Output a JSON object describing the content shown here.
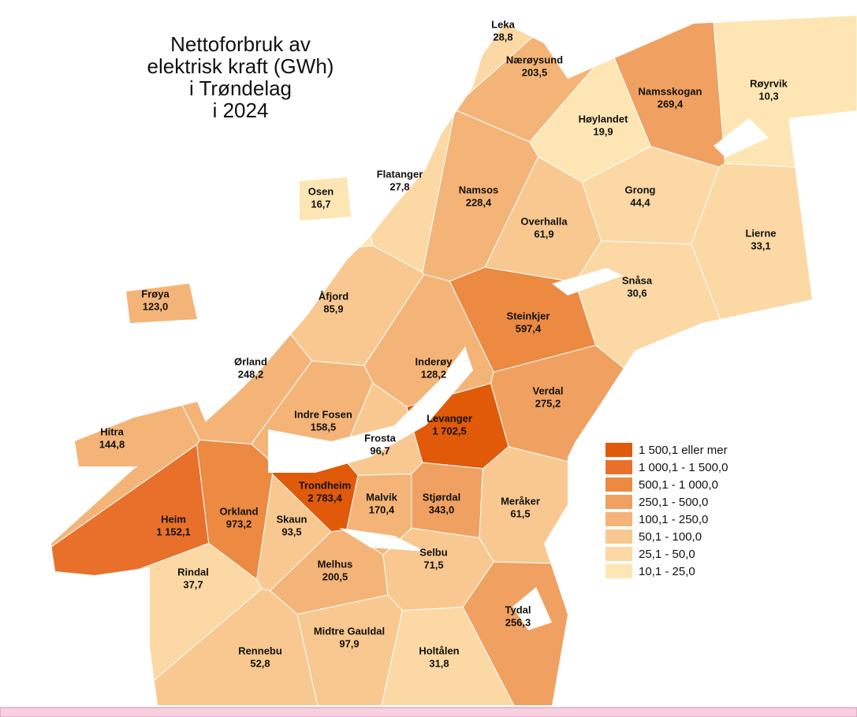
{
  "title": [
    "Nettoforbruk av",
    "elektrisk kraft (GWh)",
    "i Trøndelag",
    "i 2024"
  ],
  "municipalities": [
    {
      "name": "Leka",
      "value": "28,8",
      "color": "#fbd8a4"
    },
    {
      "name": "Nærøysund",
      "value": "203,5",
      "color": "#f4b478"
    },
    {
      "name": "Namsskogan",
      "value": "269,4",
      "color": "#f0a060"
    },
    {
      "name": "Røyrvik",
      "value": "10,3",
      "color": "#fde6b4"
    },
    {
      "name": "Høylandet",
      "value": "19,9",
      "color": "#fde6b4"
    },
    {
      "name": "Flatanger",
      "value": "27,8",
      "color": "#fbd8a4"
    },
    {
      "name": "Osen",
      "value": "16,7",
      "color": "#fde6b4"
    },
    {
      "name": "Namsos",
      "value": "228,4",
      "color": "#f4b478"
    },
    {
      "name": "Grong",
      "value": "44,4",
      "color": "#fbd8a4"
    },
    {
      "name": "Overhalla",
      "value": "61,9",
      "color": "#f8c890"
    },
    {
      "name": "Lierne",
      "value": "33,1",
      "color": "#fbd8a4"
    },
    {
      "name": "Snåsa",
      "value": "30,6",
      "color": "#fbd8a4"
    },
    {
      "name": "Frøya",
      "value": "123,0",
      "color": "#f4b478"
    },
    {
      "name": "Åfjord",
      "value": "85,9",
      "color": "#f8c890"
    },
    {
      "name": "Steinkjer",
      "value": "597,4",
      "color": "#ec8a42"
    },
    {
      "name": "Ørland",
      "value": "248,2",
      "color": "#f4b478"
    },
    {
      "name": "Inderøy",
      "value": "128,2",
      "color": "#f4b478"
    },
    {
      "name": "Verdal",
      "value": "275,2",
      "color": "#f0a060"
    },
    {
      "name": "Indre Fosen",
      "value": "158,5",
      "color": "#f4b478"
    },
    {
      "name": "Levanger",
      "value": "1 702,5",
      "color": "#e05a0a"
    },
    {
      "name": "Hitra",
      "value": "144,8",
      "color": "#f4b478"
    },
    {
      "name": "Frosta",
      "value": "96,7",
      "color": "#f8c890"
    },
    {
      "name": "Stjørdal",
      "value": "343,0",
      "color": "#f0a060"
    },
    {
      "name": "Trondheim",
      "value": "2 783,4",
      "color": "#e05a0a"
    },
    {
      "name": "Malvik",
      "value": "170,4",
      "color": "#f4b478"
    },
    {
      "name": "Meråker",
      "value": "61,5",
      "color": "#f8c890"
    },
    {
      "name": "Heim",
      "value": "1 152,1",
      "color": "#e8702a"
    },
    {
      "name": "Orkland",
      "value": "973,2",
      "color": "#ec8a42"
    },
    {
      "name": "Skaun",
      "value": "93,5",
      "color": "#f8c890"
    },
    {
      "name": "Melhus",
      "value": "200,5",
      "color": "#f4b478"
    },
    {
      "name": "Selbu",
      "value": "71,5",
      "color": "#f8c890"
    },
    {
      "name": "Rindal",
      "value": "37,7",
      "color": "#fbd8a4"
    },
    {
      "name": "Tydal",
      "value": "256,3",
      "color": "#f0a060"
    },
    {
      "name": "Midtre Gauldal",
      "value": "97,9",
      "color": "#f8c890"
    },
    {
      "name": "Holtålen",
      "value": "31,8",
      "color": "#fbd8a4"
    },
    {
      "name": "Rennebu",
      "value": "52,8",
      "color": "#f8c890"
    }
  ],
  "legend": [
    {
      "label": "1 500,1 eller mer",
      "color": "#e05a0a"
    },
    {
      "label": "1 000,1 - 1 500,0",
      "color": "#e8702a"
    },
    {
      "label": "500,1 - 1 000,0",
      "color": "#ec8a42"
    },
    {
      "label": "250,1 - 500,0",
      "color": "#f0a060"
    },
    {
      "label": "100,1 - 250,0",
      "color": "#f4b478"
    },
    {
      "label": "50,1 - 100,0",
      "color": "#f8c890"
    },
    {
      "label": "25,1 - 50,0",
      "color": "#fbd8a4"
    },
    {
      "label": "10,1 - 25,0",
      "color": "#fde6b4"
    }
  ]
}
